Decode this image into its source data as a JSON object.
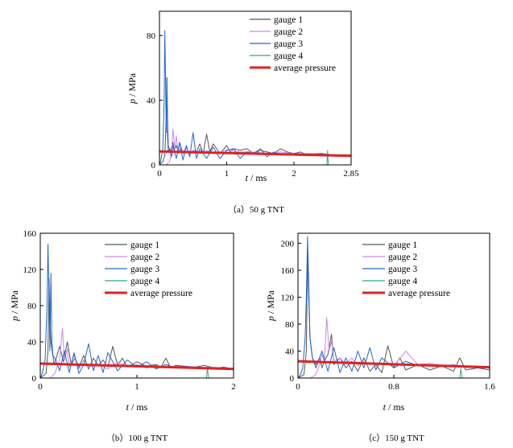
{
  "chart_data": [
    {
      "type": "line",
      "caption": "（a）50 g TNT",
      "xlabel_var": "t",
      "xlabel_unit": "/ ms",
      "ylabel_var": "p",
      "ylabel_unit": "/ MPa",
      "xlim": [
        0,
        2.85
      ],
      "ylim": [
        0,
        95
      ],
      "xticks": [
        0,
        1,
        2,
        2.85
      ],
      "yticks": [
        0,
        40,
        80
      ],
      "xtick_labels": [
        "0",
        "1",
        "2",
        "2.85"
      ],
      "ytick_labels": [
        "0",
        "40",
        "80"
      ],
      "legend_position": "top-right",
      "series": [
        {
          "name": "gauge 1",
          "color": "#555555",
          "x": [
            0.0,
            0.05,
            0.08,
            0.1,
            0.11,
            0.12,
            0.13,
            0.16,
            0.2,
            0.22,
            0.25,
            0.28,
            0.32,
            0.36,
            0.4,
            0.45,
            0.5,
            0.55,
            0.6,
            0.65,
            0.7,
            0.75,
            0.8,
            0.9,
            1.0,
            1.05,
            1.1,
            1.2,
            1.3,
            1.4,
            1.5,
            1.6,
            1.7,
            1.8,
            1.9,
            2.0,
            2.1,
            2.2,
            2.4,
            2.6,
            2.85
          ],
          "y": [
            0,
            2,
            6,
            30,
            54,
            30,
            12,
            8,
            14,
            9,
            12,
            8,
            10,
            7,
            11,
            6,
            9,
            8,
            13,
            7,
            19,
            8,
            13,
            7,
            12,
            8,
            10,
            9,
            10,
            7,
            9,
            8,
            7,
            10,
            8,
            7,
            8,
            6,
            7,
            6,
            6
          ]
        },
        {
          "name": "gauge 2",
          "color": "#cc88ee",
          "x": [
            0.0,
            0.1,
            0.15,
            0.18,
            0.2,
            0.23,
            0.25,
            0.28,
            0.3,
            0.35,
            0.4,
            0.45,
            0.5,
            0.6,
            0.7,
            0.8,
            0.9,
            1.0,
            1.2,
            1.4,
            1.6,
            1.8,
            2.0,
            2.2,
            2.4,
            2.6,
            2.85
          ],
          "y": [
            0,
            0,
            2,
            8,
            22,
            10,
            18,
            7,
            14,
            8,
            11,
            6,
            9,
            8,
            9,
            7,
            8,
            9,
            8,
            8,
            7,
            8,
            7,
            7,
            7,
            6,
            6
          ]
        },
        {
          "name": "gauge 3",
          "color": "#2266cc",
          "x": [
            0.0,
            0.02,
            0.05,
            0.07,
            0.08,
            0.09,
            0.1,
            0.11,
            0.12,
            0.13,
            0.15,
            0.18,
            0.2,
            0.25,
            0.3,
            0.35,
            0.4,
            0.45,
            0.5,
            0.55,
            0.6,
            0.7,
            0.8,
            0.9,
            1.0,
            1.1,
            1.2,
            1.3,
            1.4,
            1.5,
            1.6,
            1.7,
            1.8,
            2.0,
            2.2,
            2.4,
            2.6,
            2.85
          ],
          "y": [
            0,
            3,
            10,
            40,
            83,
            55,
            20,
            54,
            18,
            8,
            10,
            5,
            12,
            4,
            14,
            3,
            12,
            5,
            20,
            4,
            10,
            4,
            11,
            4,
            9,
            10,
            4,
            8,
            7,
            10,
            5,
            8,
            6,
            7,
            6,
            7,
            6,
            6
          ]
        },
        {
          "name": "gauge 4",
          "color": "#33aa77",
          "x": [
            0.0,
            0.3,
            0.6,
            0.9,
            1.2,
            1.5,
            1.8,
            2.1,
            2.4,
            2.49,
            2.5,
            2.51,
            2.6,
            2.85
          ],
          "y": [
            0,
            0,
            0,
            0,
            0,
            0,
            0,
            0,
            0,
            0,
            9,
            0,
            0,
            0
          ]
        },
        {
          "name": "average pressure",
          "color": "#dd2222",
          "x": [
            0,
            2.85
          ],
          "y": [
            8.3,
            5.6
          ]
        }
      ]
    },
    {
      "type": "line",
      "caption": "（b）100 g TNT",
      "xlabel_var": "t",
      "xlabel_unit": "/ ms",
      "ylabel_var": "p",
      "ylabel_unit": "/ MPa",
      "xlim": [
        0,
        2
      ],
      "ylim": [
        0,
        160
      ],
      "xticks": [
        0,
        1,
        2
      ],
      "yticks": [
        0,
        40,
        80,
        120,
        160
      ],
      "xtick_labels": [
        "0",
        "1",
        "2"
      ],
      "ytick_labels": [
        "0",
        "40",
        "80",
        "120",
        "160"
      ],
      "legend_position": "top-right",
      "series": [
        {
          "name": "gauge 1",
          "color": "#555555",
          "x": [
            0.0,
            0.06,
            0.08,
            0.09,
            0.1,
            0.11,
            0.13,
            0.16,
            0.2,
            0.24,
            0.28,
            0.32,
            0.36,
            0.4,
            0.45,
            0.5,
            0.55,
            0.6,
            0.65,
            0.7,
            0.75,
            0.8,
            0.85,
            0.9,
            1.0,
            1.1,
            1.2,
            1.25,
            1.3,
            1.35,
            1.4,
            1.5,
            1.6,
            1.7,
            1.8,
            1.9,
            2.0
          ],
          "y": [
            0,
            5,
            30,
            110,
            60,
            40,
            25,
            20,
            35,
            18,
            40,
            15,
            22,
            12,
            25,
            10,
            22,
            14,
            20,
            12,
            35,
            14,
            22,
            12,
            18,
            13,
            15,
            12,
            22,
            11,
            14,
            13,
            12,
            14,
            11,
            12,
            10
          ]
        },
        {
          "name": "gauge 2",
          "color": "#cc88ee",
          "x": [
            0.0,
            0.1,
            0.15,
            0.2,
            0.23,
            0.25,
            0.28,
            0.3,
            0.35,
            0.4,
            0.45,
            0.5,
            0.6,
            0.7,
            0.8,
            0.9,
            1.0,
            1.1,
            1.2,
            1.3,
            1.4,
            1.5,
            1.6,
            1.7,
            1.8,
            2.0
          ],
          "y": [
            0,
            0,
            5,
            20,
            55,
            20,
            32,
            12,
            25,
            10,
            20,
            12,
            15,
            10,
            18,
            12,
            15,
            11,
            14,
            12,
            13,
            11,
            12,
            11,
            12,
            10
          ]
        },
        {
          "name": "gauge 3",
          "color": "#2266cc",
          "x": [
            0.0,
            0.02,
            0.05,
            0.07,
            0.08,
            0.09,
            0.1,
            0.11,
            0.12,
            0.14,
            0.16,
            0.2,
            0.25,
            0.3,
            0.35,
            0.4,
            0.45,
            0.5,
            0.55,
            0.6,
            0.65,
            0.7,
            0.8,
            0.9,
            1.0,
            1.1,
            1.2,
            1.3,
            1.4,
            1.5,
            1.6,
            1.7,
            1.8,
            1.9,
            2.0
          ],
          "y": [
            0,
            5,
            20,
            80,
            148,
            90,
            30,
            116,
            40,
            15,
            20,
            8,
            30,
            6,
            28,
            5,
            15,
            38,
            8,
            25,
            6,
            28,
            8,
            20,
            12,
            18,
            10,
            15,
            11,
            13,
            12,
            11,
            10,
            11,
            10
          ]
        },
        {
          "name": "gauge 4",
          "color": "#33aa77",
          "x": [
            0.0,
            0.4,
            0.8,
            1.2,
            1.6,
            1.72,
            1.73,
            1.74,
            1.8,
            2.0
          ],
          "y": [
            0,
            0,
            0,
            0,
            0,
            0,
            12,
            0,
            0,
            0
          ]
        },
        {
          "name": "average pressure",
          "color": "#dd2222",
          "x": [
            0,
            2
          ],
          "y": [
            16,
            10
          ]
        }
      ]
    },
    {
      "type": "line",
      "caption": "（c）150 g TNT",
      "xlabel_var": "t",
      "xlabel_unit": "/ ms",
      "ylabel_var": "p",
      "ylabel_unit": "/ MPa",
      "xlim": [
        0,
        1.6
      ],
      "ylim": [
        0,
        215
      ],
      "xticks": [
        0,
        0.8,
        1.6
      ],
      "yticks": [
        0,
        40,
        80,
        120,
        160,
        200
      ],
      "xtick_labels": [
        "0",
        "0.8",
        "1.6"
      ],
      "ytick_labels": [
        "0",
        "40",
        "80",
        "120",
        "160",
        "200"
      ],
      "legend_position": "top-right",
      "series": [
        {
          "name": "gauge 1",
          "color": "#555555",
          "x": [
            0.0,
            0.05,
            0.07,
            0.08,
            0.09,
            0.1,
            0.12,
            0.15,
            0.18,
            0.2,
            0.22,
            0.25,
            0.28,
            0.3,
            0.35,
            0.4,
            0.45,
            0.5,
            0.55,
            0.6,
            0.65,
            0.7,
            0.75,
            0.8,
            0.85,
            0.9,
            1.0,
            1.1,
            1.2,
            1.3,
            1.35,
            1.4,
            1.5,
            1.6
          ],
          "y": [
            0,
            5,
            40,
            180,
            120,
            60,
            30,
            20,
            30,
            15,
            25,
            35,
            65,
            20,
            30,
            15,
            25,
            10,
            30,
            10,
            20,
            8,
            48,
            15,
            30,
            12,
            20,
            12,
            18,
            10,
            30,
            12,
            15,
            12
          ]
        },
        {
          "name": "gauge 2",
          "color": "#cc88ee",
          "x": [
            0.0,
            0.1,
            0.15,
            0.18,
            0.2,
            0.22,
            0.24,
            0.26,
            0.28,
            0.3,
            0.35,
            0.4,
            0.45,
            0.5,
            0.55,
            0.6,
            0.7,
            0.8,
            0.9,
            1.0,
            1.1,
            1.2,
            1.3,
            1.4,
            1.5,
            1.6
          ],
          "y": [
            0,
            0,
            5,
            20,
            35,
            25,
            90,
            40,
            55,
            25,
            30,
            20,
            30,
            18,
            25,
            20,
            22,
            18,
            40,
            20,
            22,
            18,
            20,
            17,
            16,
            15
          ]
        },
        {
          "name": "gauge 3",
          "color": "#2266cc",
          "x": [
            0.0,
            0.02,
            0.04,
            0.06,
            0.07,
            0.08,
            0.09,
            0.1,
            0.12,
            0.15,
            0.2,
            0.25,
            0.3,
            0.35,
            0.4,
            0.45,
            0.5,
            0.55,
            0.6,
            0.65,
            0.7,
            0.8,
            0.9,
            1.0,
            1.1,
            1.2,
            1.3,
            1.4,
            1.5,
            1.6
          ],
          "y": [
            0,
            5,
            15,
            60,
            120,
            210,
            140,
            60,
            30,
            15,
            40,
            10,
            45,
            8,
            30,
            10,
            40,
            15,
            45,
            12,
            30,
            15,
            25,
            18,
            20,
            17,
            18,
            16,
            15,
            15
          ]
        },
        {
          "name": "gauge 4",
          "color": "#33aa77",
          "x": [
            0.0,
            0.4,
            0.8,
            1.2,
            1.35,
            1.36,
            1.37,
            1.4,
            1.6
          ],
          "y": [
            0,
            0,
            0,
            0,
            0,
            14,
            0,
            0,
            0
          ]
        },
        {
          "name": "average pressure",
          "color": "#dd2222",
          "x": [
            0,
            1.6
          ],
          "y": [
            25,
            16
          ]
        }
      ]
    }
  ]
}
